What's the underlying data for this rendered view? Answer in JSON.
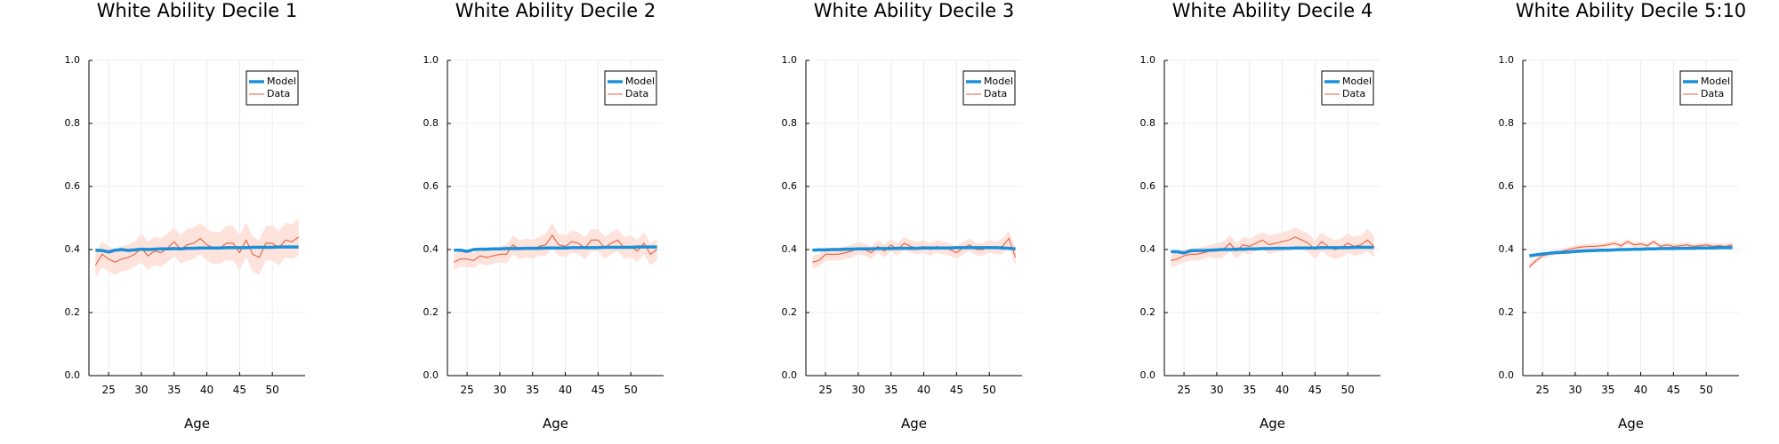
{
  "figure": {
    "colors": {
      "model": "#1b8fd8",
      "data": "#e8603c",
      "band": "#fde3dc",
      "grid": "#ececec",
      "axis": "#000000"
    }
  },
  "chart_data": [
    {
      "type": "line",
      "title": "White Ability Decile 1",
      "xlabel": "Age",
      "ylabel": "",
      "xlim": [
        22,
        55
      ],
      "ylim": [
        0,
        1
      ],
      "xticks": [
        25,
        30,
        35,
        40,
        45,
        50
      ],
      "yticks": [
        "0.0",
        "0.2",
        "0.4",
        "0.6",
        "0.8",
        "1.0"
      ],
      "legend": "top-right",
      "grid": true,
      "x": [
        23,
        24,
        25,
        26,
        27,
        28,
        29,
        30,
        31,
        32,
        33,
        34,
        35,
        36,
        37,
        38,
        39,
        40,
        41,
        42,
        43,
        44,
        45,
        46,
        47,
        48,
        49,
        50,
        51,
        52,
        53,
        54
      ],
      "series": [
        {
          "name": "Model",
          "values": [
            0.398,
            0.397,
            0.392,
            0.398,
            0.4,
            0.397,
            0.399,
            0.401,
            0.4,
            0.401,
            0.402,
            0.402,
            0.403,
            0.402,
            0.404,
            0.404,
            0.405,
            0.405,
            0.405,
            0.405,
            0.406,
            0.406,
            0.406,
            0.406,
            0.407,
            0.407,
            0.407,
            0.407,
            0.408,
            0.408,
            0.408,
            0.408
          ]
        },
        {
          "name": "Data",
          "values": [
            0.35,
            0.385,
            0.37,
            0.36,
            0.37,
            0.375,
            0.385,
            0.405,
            0.38,
            0.395,
            0.39,
            0.405,
            0.425,
            0.4,
            0.415,
            0.42,
            0.435,
            0.415,
            0.405,
            0.405,
            0.42,
            0.42,
            0.39,
            0.43,
            0.385,
            0.375,
            0.42,
            0.42,
            0.405,
            0.43,
            0.425,
            0.44
          ],
          "band": [
            0.04,
            0.04,
            0.04,
            0.04,
            0.04,
            0.04,
            0.04,
            0.045,
            0.045,
            0.045,
            0.045,
            0.045,
            0.045,
            0.045,
            0.05,
            0.05,
            0.05,
            0.05,
            0.05,
            0.05,
            0.055,
            0.055,
            0.055,
            0.055,
            0.055,
            0.055,
            0.055,
            0.055,
            0.055,
            0.055,
            0.055,
            0.06
          ]
        }
      ]
    },
    {
      "type": "line",
      "title": "White Ability Decile 2",
      "xlabel": "Age",
      "ylabel": "",
      "xlim": [
        22,
        55
      ],
      "ylim": [
        0,
        1
      ],
      "xticks": [
        25,
        30,
        35,
        40,
        45,
        50
      ],
      "yticks": [
        "0.0",
        "0.2",
        "0.4",
        "0.6",
        "0.8",
        "1.0"
      ],
      "legend": "top-right",
      "grid": true,
      "x": [
        23,
        24,
        25,
        26,
        27,
        28,
        29,
        30,
        31,
        32,
        33,
        34,
        35,
        36,
        37,
        38,
        39,
        40,
        41,
        42,
        43,
        44,
        45,
        46,
        47,
        48,
        49,
        50,
        51,
        52,
        53,
        54
      ],
      "series": [
        {
          "name": "Model",
          "values": [
            0.398,
            0.398,
            0.394,
            0.4,
            0.401,
            0.401,
            0.402,
            0.402,
            0.403,
            0.403,
            0.403,
            0.404,
            0.404,
            0.404,
            0.405,
            0.405,
            0.405,
            0.405,
            0.406,
            0.406,
            0.406,
            0.406,
            0.406,
            0.407,
            0.407,
            0.407,
            0.407,
            0.407,
            0.408,
            0.408,
            0.408,
            0.408
          ]
        },
        {
          "name": "Data",
          "values": [
            0.36,
            0.37,
            0.37,
            0.365,
            0.38,
            0.375,
            0.38,
            0.385,
            0.385,
            0.415,
            0.4,
            0.405,
            0.4,
            0.41,
            0.415,
            0.445,
            0.415,
            0.41,
            0.425,
            0.42,
            0.405,
            0.43,
            0.43,
            0.405,
            0.42,
            0.43,
            0.405,
            0.41,
            0.395,
            0.42,
            0.385,
            0.4
          ],
          "band": [
            0.025,
            0.025,
            0.025,
            0.025,
            0.025,
            0.025,
            0.025,
            0.025,
            0.03,
            0.03,
            0.03,
            0.03,
            0.03,
            0.03,
            0.035,
            0.04,
            0.035,
            0.035,
            0.035,
            0.035,
            0.035,
            0.035,
            0.035,
            0.035,
            0.035,
            0.035,
            0.035,
            0.035,
            0.035,
            0.035,
            0.035,
            0.035
          ]
        }
      ]
    },
    {
      "type": "line",
      "title": "White Ability Decile 3",
      "xlabel": "Age",
      "ylabel": "",
      "xlim": [
        22,
        55
      ],
      "ylim": [
        0,
        1
      ],
      "xticks": [
        25,
        30,
        35,
        40,
        45,
        50
      ],
      "yticks": [
        "0.0",
        "0.2",
        "0.4",
        "0.6",
        "0.8",
        "1.0"
      ],
      "legend": "top-right",
      "grid": true,
      "x": [
        23,
        24,
        25,
        26,
        27,
        28,
        29,
        30,
        31,
        32,
        33,
        34,
        35,
        36,
        37,
        38,
        39,
        40,
        41,
        42,
        43,
        44,
        45,
        46,
        47,
        48,
        49,
        50,
        51,
        52,
        53,
        54
      ],
      "series": [
        {
          "name": "Model",
          "values": [
            0.398,
            0.399,
            0.399,
            0.4,
            0.4,
            0.401,
            0.401,
            0.402,
            0.402,
            0.402,
            0.403,
            0.403,
            0.403,
            0.404,
            0.404,
            0.404,
            0.404,
            0.405,
            0.405,
            0.405,
            0.405,
            0.405,
            0.406,
            0.406,
            0.406,
            0.406,
            0.406,
            0.406,
            0.406,
            0.405,
            0.404,
            0.402
          ]
        },
        {
          "name": "Data",
          "values": [
            0.36,
            0.365,
            0.385,
            0.385,
            0.385,
            0.39,
            0.395,
            0.405,
            0.4,
            0.39,
            0.41,
            0.395,
            0.415,
            0.4,
            0.42,
            0.41,
            0.405,
            0.41,
            0.4,
            0.41,
            0.405,
            0.4,
            0.39,
            0.405,
            0.415,
            0.4,
            0.4,
            0.41,
            0.405,
            0.41,
            0.435,
            0.375
          ],
          "band": [
            0.02,
            0.02,
            0.02,
            0.02,
            0.02,
            0.02,
            0.02,
            0.02,
            0.02,
            0.02,
            0.02,
            0.02,
            0.02,
            0.02,
            0.02,
            0.02,
            0.02,
            0.02,
            0.02,
            0.02,
            0.02,
            0.02,
            0.02,
            0.02,
            0.02,
            0.02,
            0.02,
            0.02,
            0.02,
            0.025,
            0.025,
            0.03
          ]
        }
      ]
    },
    {
      "type": "line",
      "title": "White Ability Decile 4",
      "xlabel": "Age",
      "ylabel": "",
      "xlim": [
        22,
        55
      ],
      "ylim": [
        0,
        1
      ],
      "xticks": [
        25,
        30,
        35,
        40,
        45,
        50
      ],
      "yticks": [
        "0.0",
        "0.2",
        "0.4",
        "0.6",
        "0.8",
        "1.0"
      ],
      "legend": "top-right",
      "grid": true,
      "x": [
        23,
        24,
        25,
        26,
        27,
        28,
        29,
        30,
        31,
        32,
        33,
        34,
        35,
        36,
        37,
        38,
        39,
        40,
        41,
        42,
        43,
        44,
        45,
        46,
        47,
        48,
        49,
        50,
        51,
        52,
        53,
        54
      ],
      "series": [
        {
          "name": "Model",
          "values": [
            0.393,
            0.393,
            0.389,
            0.396,
            0.397,
            0.397,
            0.398,
            0.399,
            0.4,
            0.4,
            0.401,
            0.401,
            0.402,
            0.402,
            0.403,
            0.403,
            0.404,
            0.404,
            0.404,
            0.405,
            0.405,
            0.405,
            0.405,
            0.406,
            0.406,
            0.406,
            0.406,
            0.406,
            0.407,
            0.407,
            0.407,
            0.407
          ]
        },
        {
          "name": "Data",
          "values": [
            0.365,
            0.37,
            0.38,
            0.385,
            0.385,
            0.39,
            0.395,
            0.395,
            0.4,
            0.42,
            0.395,
            0.415,
            0.41,
            0.42,
            0.43,
            0.415,
            0.42,
            0.425,
            0.43,
            0.44,
            0.43,
            0.42,
            0.4,
            0.425,
            0.41,
            0.4,
            0.405,
            0.42,
            0.41,
            0.415,
            0.43,
            0.41
          ],
          "band": [
            0.02,
            0.02,
            0.02,
            0.02,
            0.02,
            0.02,
            0.02,
            0.025,
            0.025,
            0.025,
            0.025,
            0.025,
            0.025,
            0.025,
            0.025,
            0.03,
            0.03,
            0.03,
            0.03,
            0.03,
            0.03,
            0.03,
            0.03,
            0.03,
            0.03,
            0.03,
            0.03,
            0.03,
            0.03,
            0.03,
            0.035,
            0.035
          ]
        }
      ]
    },
    {
      "type": "line",
      "title": "White Ability Decile 5:10",
      "xlabel": "Age",
      "ylabel": "",
      "xlim": [
        22,
        55
      ],
      "ylim": [
        0,
        1
      ],
      "xticks": [
        25,
        30,
        35,
        40,
        45,
        50
      ],
      "yticks": [
        "0.0",
        "0.2",
        "0.4",
        "0.6",
        "0.8",
        "1.0"
      ],
      "legend": "top-right",
      "grid": true,
      "x": [
        23,
        24,
        25,
        26,
        27,
        28,
        29,
        30,
        31,
        32,
        33,
        34,
        35,
        36,
        37,
        38,
        39,
        40,
        41,
        42,
        43,
        44,
        45,
        46,
        47,
        48,
        49,
        50,
        51,
        52,
        53,
        54
      ],
      "series": [
        {
          "name": "Model",
          "values": [
            0.38,
            0.383,
            0.386,
            0.388,
            0.39,
            0.391,
            0.392,
            0.394,
            0.395,
            0.396,
            0.397,
            0.398,
            0.398,
            0.399,
            0.4,
            0.4,
            0.401,
            0.401,
            0.402,
            0.402,
            0.403,
            0.403,
            0.403,
            0.404,
            0.404,
            0.404,
            0.405,
            0.405,
            0.405,
            0.406,
            0.406,
            0.406
          ]
        },
        {
          "name": "Data",
          "values": [
            0.345,
            0.365,
            0.38,
            0.385,
            0.39,
            0.395,
            0.4,
            0.405,
            0.408,
            0.41,
            0.41,
            0.412,
            0.415,
            0.42,
            0.412,
            0.425,
            0.415,
            0.418,
            0.412,
            0.425,
            0.41,
            0.415,
            0.41,
            0.412,
            0.415,
            0.41,
            0.412,
            0.415,
            0.41,
            0.412,
            0.41,
            0.415
          ],
          "band": [
            0.01,
            0.008,
            0.008,
            0.008,
            0.008,
            0.008,
            0.008,
            0.008,
            0.008,
            0.008,
            0.008,
            0.008,
            0.008,
            0.008,
            0.008,
            0.008,
            0.008,
            0.008,
            0.008,
            0.008,
            0.008,
            0.008,
            0.008,
            0.008,
            0.008,
            0.008,
            0.008,
            0.008,
            0.008,
            0.008,
            0.008,
            0.01
          ]
        }
      ]
    }
  ]
}
